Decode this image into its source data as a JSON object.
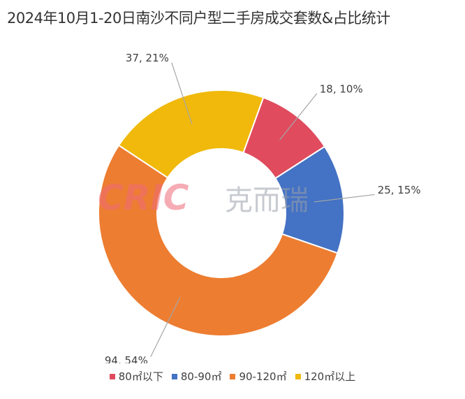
{
  "chart_data": {
    "type": "donut",
    "title": "2024年10月1-20日南沙不同户型二手房成交套数&占比统计",
    "categories": [
      "80㎡以下",
      "80-90㎡",
      "90-120㎡",
      "120㎡以上"
    ],
    "values": [
      18,
      25,
      94,
      37
    ],
    "percents": [
      10,
      15,
      54,
      21
    ],
    "data_labels": [
      "18, 10%",
      "25, 15%",
      "94, 54%",
      "37, 21%"
    ],
    "colors": [
      "#E04B5E",
      "#4472C4",
      "#ED7D31",
      "#F0B90B"
    ],
    "legend_position": "bottom"
  },
  "watermark": {
    "latin": "CRIC",
    "cjk": "克而瑞"
  }
}
